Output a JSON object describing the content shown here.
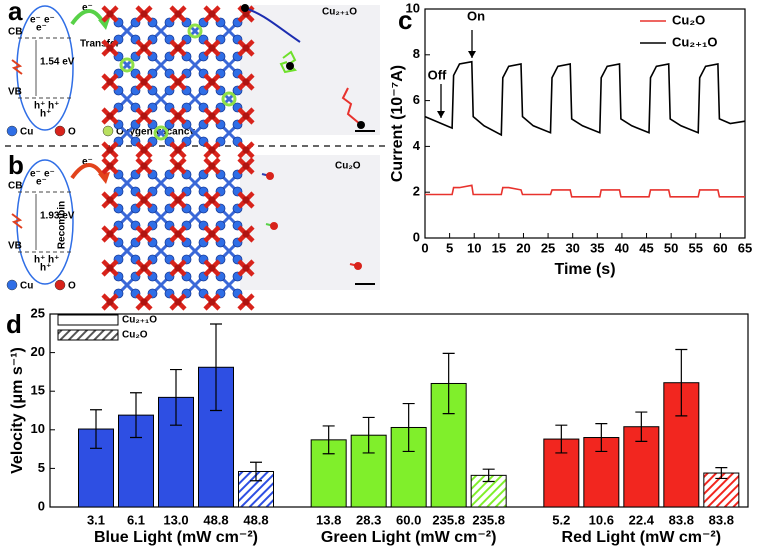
{
  "diagrams": {
    "a": {
      "letter": "a",
      "cb": "CB",
      "vb": "VB",
      "electron": "e⁻",
      "hole": "h⁺",
      "gap": "1.54 eV",
      "arrow": "Transfer",
      "legend": [
        "Cu",
        "O",
        "Oxygen vacancy"
      ],
      "sample": "Cu₂₊₁O"
    },
    "b": {
      "letter": "b",
      "cb": "CB",
      "vb": "VB",
      "electron": "e⁻",
      "hole": "h⁺",
      "gap": "1.93 eV",
      "arrow": "Recombin",
      "legend": [
        "Cu",
        "O"
      ],
      "sample": "Cu₂O"
    }
  },
  "chart_data": [
    {
      "type": "line",
      "panel": "c",
      "xlabel": "Time (s)",
      "ylabel": "Current (10⁻⁷A)",
      "xlim": [
        0,
        65
      ],
      "xticks": [
        0,
        5,
        10,
        15,
        20,
        25,
        30,
        35,
        40,
        45,
        50,
        55,
        60,
        65
      ],
      "ylim": [
        0,
        10
      ],
      "yticks": [
        0,
        2,
        4,
        6,
        8,
        10
      ],
      "legend": "upper right",
      "annotations": [
        "Off",
        "On"
      ],
      "x": [
        0,
        5.5,
        5.8,
        7,
        9.5,
        9.8,
        12,
        15.5,
        15.8,
        17,
        19.5,
        19.8,
        22,
        25.5,
        25.8,
        27,
        29.5,
        29.8,
        32,
        35.5,
        35.8,
        37,
        39.5,
        39.8,
        42,
        45.5,
        45.8,
        47,
        49.5,
        49.8,
        52,
        55.5,
        55.8,
        57,
        59.5,
        59.8,
        62,
        65
      ],
      "series": [
        {
          "name": "Cu₂O",
          "color": "#e8322d",
          "values": [
            1.9,
            1.9,
            2.2,
            2.2,
            2.3,
            1.9,
            1.9,
            1.9,
            2.2,
            2.2,
            2.1,
            1.9,
            1.9,
            1.9,
            2.1,
            2.1,
            2.1,
            1.8,
            1.8,
            1.8,
            2.1,
            2.1,
            2.1,
            1.8,
            1.8,
            1.8,
            2.1,
            2.1,
            2.1,
            1.8,
            1.8,
            1.8,
            2.1,
            2.1,
            2.1,
            1.8,
            1.8,
            1.8
          ]
        },
        {
          "name": "Cu₂₊₁O",
          "color": "#000000",
          "values": [
            5.3,
            4.8,
            7.1,
            7.6,
            7.7,
            5.3,
            4.9,
            4.5,
            7.0,
            7.5,
            7.6,
            5.3,
            4.9,
            4.6,
            7.0,
            7.5,
            7.6,
            5.2,
            4.9,
            4.6,
            7.0,
            7.5,
            7.6,
            5.2,
            4.9,
            4.6,
            7.0,
            7.5,
            7.6,
            5.2,
            4.9,
            4.6,
            7.0,
            7.5,
            7.6,
            5.2,
            5.0,
            5.1
          ]
        }
      ]
    },
    {
      "type": "bar",
      "panel": "d",
      "ylabel": "Velocity (μm s⁻¹)",
      "ylim": [
        0,
        25
      ],
      "yticks": [
        0,
        5,
        10,
        15,
        20,
        25
      ],
      "legend": "upper left",
      "series": [
        {
          "name": "Cu₂₊₁O",
          "hatch": false
        },
        {
          "name": "Cu₂O",
          "hatch": true
        }
      ],
      "groups": [
        {
          "label": "Blue Light (mW cm⁻²)",
          "color": "#2e4fe3",
          "categories": [
            "3.1",
            "6.1",
            "13.0",
            "48.8",
            "48.8"
          ],
          "series": [
            {
              "values": [
                10.1,
                11.9,
                14.2,
                18.1,
                null
              ],
              "errors": [
                2.5,
                2.9,
                3.6,
                5.6,
                null
              ]
            },
            {
              "values": [
                null,
                null,
                null,
                null,
                4.6
              ],
              "errors": [
                null,
                null,
                null,
                null,
                1.2
              ]
            }
          ]
        },
        {
          "label": "Green Light (mW cm⁻²)",
          "color": "#80ef2b",
          "categories": [
            "13.8",
            "28.3",
            "60.0",
            "235.8",
            "235.8"
          ],
          "series": [
            {
              "values": [
                8.7,
                9.3,
                10.3,
                16.0,
                null
              ],
              "errors": [
                1.8,
                2.3,
                3.1,
                3.9,
                null
              ]
            },
            {
              "values": [
                null,
                null,
                null,
                null,
                4.1
              ],
              "errors": [
                null,
                null,
                null,
                null,
                0.8
              ]
            }
          ]
        },
        {
          "label": "Red Light (mW cm⁻²)",
          "color": "#f2261f",
          "categories": [
            "5.2",
            "10.6",
            "22.4",
            "83.8",
            "83.8"
          ],
          "series": [
            {
              "values": [
                8.8,
                9.0,
                10.4,
                16.1,
                null
              ],
              "errors": [
                1.8,
                1.8,
                1.9,
                4.3,
                null
              ]
            },
            {
              "values": [
                null,
                null,
                null,
                null,
                4.4
              ],
              "errors": [
                null,
                null,
                null,
                null,
                0.7
              ]
            }
          ]
        }
      ]
    }
  ]
}
